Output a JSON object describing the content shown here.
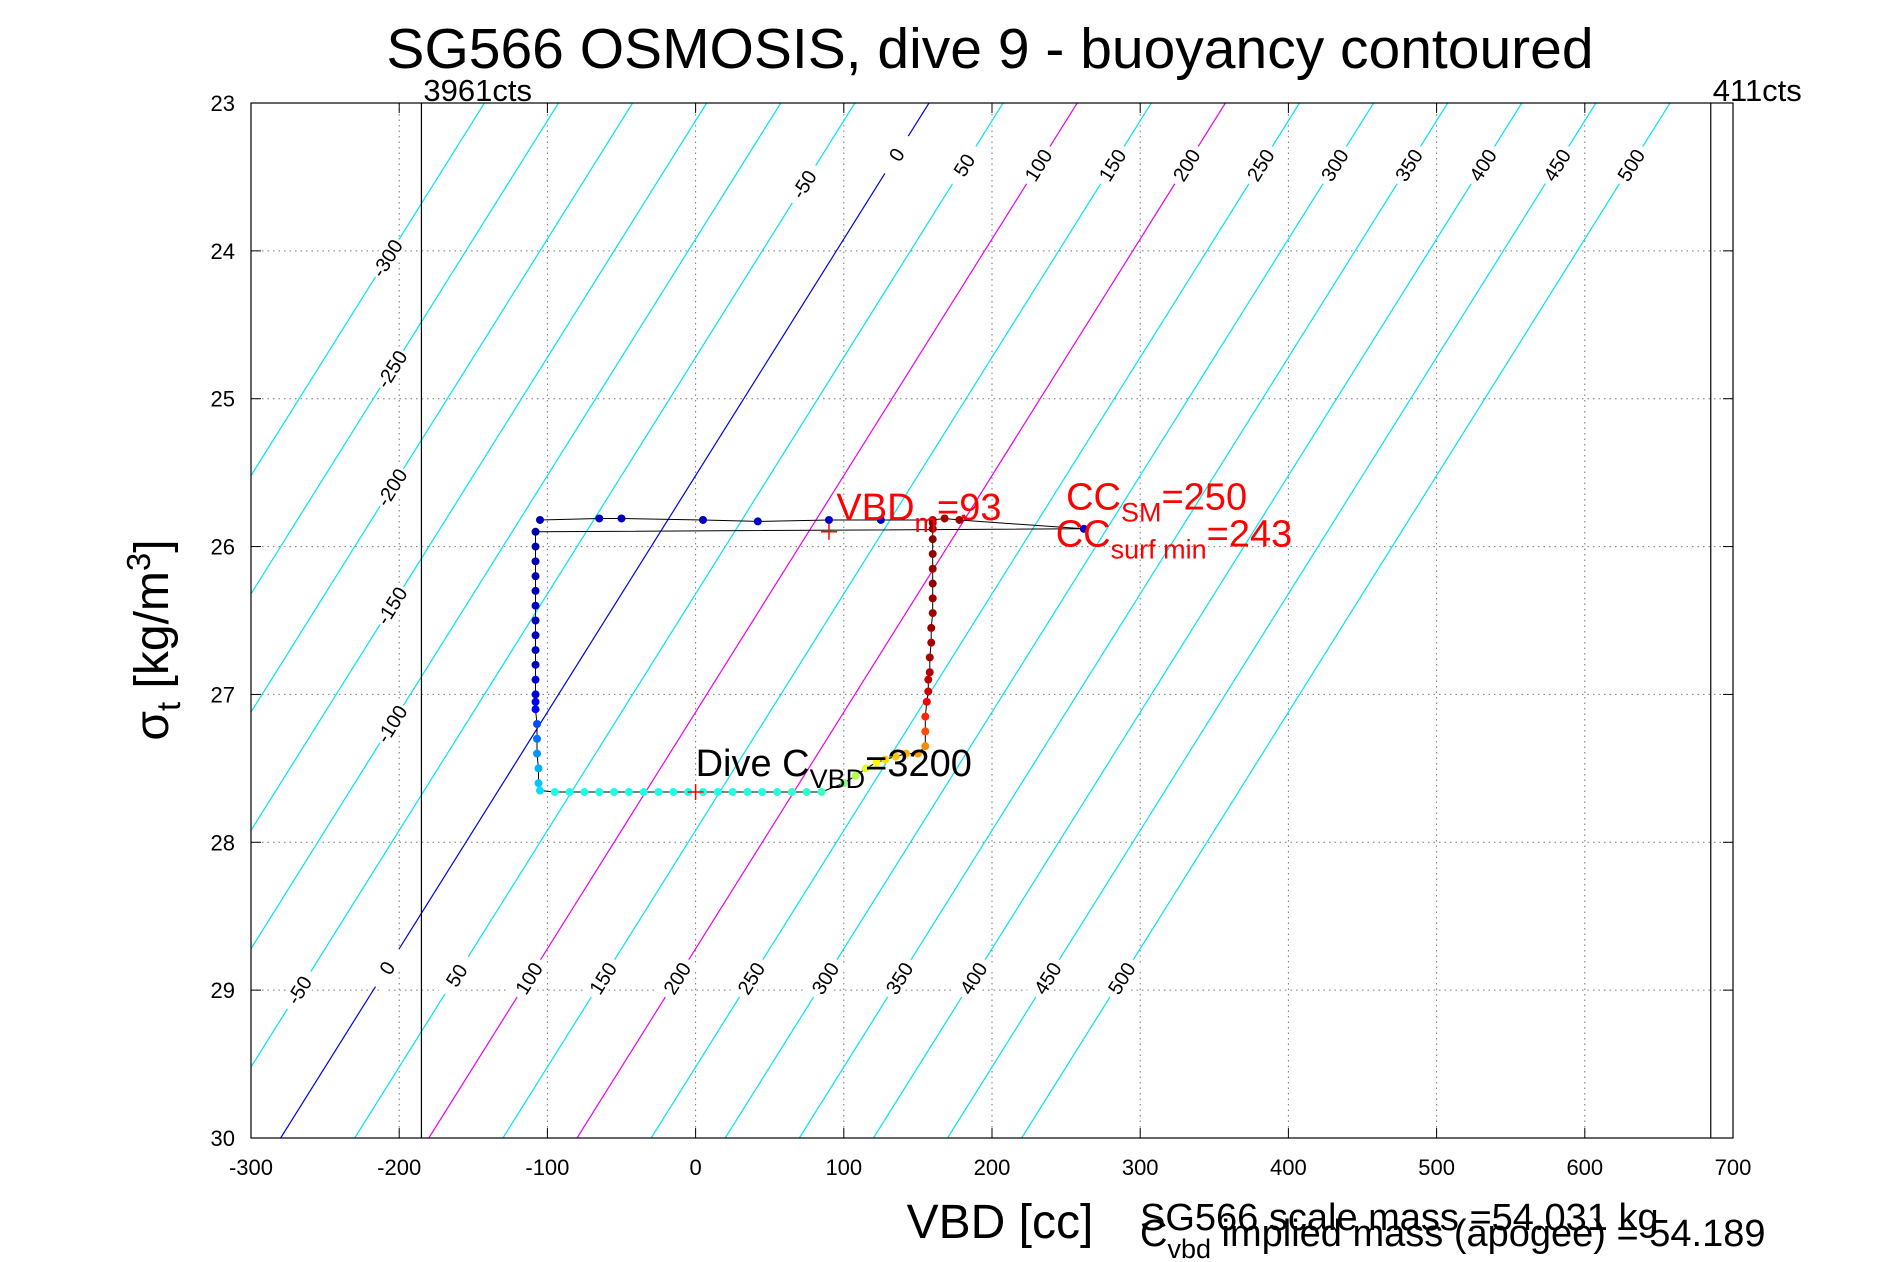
{
  "chart_data": {
    "type": "scatter",
    "title": "SG566 OSMOSIS, dive 9 - buoyancy contoured",
    "xlabel": "VBD [cc]",
    "ylabel_main": "σ",
    "ylabel_sub": "t",
    "ylabel_unit_a": " [kg/m",
    "ylabel_unit_sup": "3",
    "ylabel_unit_b": "]",
    "xlim": [
      -300,
      700
    ],
    "ylim": [
      23,
      30
    ],
    "y_reversed": true,
    "grid": true,
    "xticks": [
      -300,
      -200,
      -100,
      0,
      100,
      200,
      300,
      400,
      500,
      600,
      700
    ],
    "yticks": [
      23,
      24,
      25,
      26,
      27,
      28,
      29,
      30
    ],
    "vlines": [
      {
        "x": -185,
        "label": "3961cts"
      },
      {
        "x": 685,
        "label": "411cts"
      }
    ],
    "contours": {
      "levels": [
        -300,
        -250,
        -200,
        -150,
        -100,
        -50,
        0,
        50,
        100,
        150,
        200,
        250,
        300,
        350,
        400,
        450,
        500
      ],
      "line_x_at_sigma30": [
        -580,
        -530,
        -480,
        -430,
        -380,
        -330,
        -280,
        -230,
        -180,
        -130,
        -80,
        -30,
        20,
        70,
        120,
        170,
        220
      ],
      "slope_cc_per_sigma": 62.5,
      "colors": {
        "default": "#00e5ee",
        "zero": "#0000ee",
        "highlight": "#ee00ee"
      },
      "highlight_levels": [
        100,
        200
      ],
      "labels_top": [
        {
          "level": -300,
          "sigma": 24.05
        },
        {
          "level": -250,
          "sigma": 24.8
        },
        {
          "level": -200,
          "sigma": 25.6
        },
        {
          "level": -150,
          "sigma": 26.4
        },
        {
          "level": -100,
          "sigma": 27.2
        },
        {
          "level": -50,
          "sigma": 23.55
        },
        {
          "level": 0,
          "sigma": 23.35
        },
        {
          "level": 50,
          "sigma": 23.42
        },
        {
          "level": 100,
          "sigma": 23.42
        },
        {
          "level": 150,
          "sigma": 23.42
        },
        {
          "level": 200,
          "sigma": 23.42
        },
        {
          "level": 250,
          "sigma": 23.42
        },
        {
          "level": 300,
          "sigma": 23.42
        },
        {
          "level": 350,
          "sigma": 23.42
        },
        {
          "level": 400,
          "sigma": 23.42
        },
        {
          "level": 450,
          "sigma": 23.42
        },
        {
          "level": 500,
          "sigma": 23.42
        }
      ],
      "labels_bottom": [
        {
          "level": -50,
          "sigma": 29.0
        },
        {
          "level": 0,
          "sigma": 28.85
        },
        {
          "level": 50,
          "sigma": 28.9
        },
        {
          "level": 100,
          "sigma": 28.92
        },
        {
          "level": 150,
          "sigma": 28.92
        },
        {
          "level": 200,
          "sigma": 28.92
        },
        {
          "level": 250,
          "sigma": 28.92
        },
        {
          "level": 300,
          "sigma": 28.92
        },
        {
          "level": 350,
          "sigma": 28.92
        },
        {
          "level": 400,
          "sigma": 28.92
        },
        {
          "level": 450,
          "sigma": 28.92
        },
        {
          "level": 500,
          "sigma": 28.92
        }
      ]
    },
    "series": [
      {
        "points": [
          [
            -105,
            25.82
          ],
          [
            -65,
            25.81
          ],
          [
            -50,
            25.81
          ],
          [
            5,
            25.82
          ],
          [
            42,
            25.83
          ],
          [
            90,
            25.82
          ],
          [
            125,
            25.82
          ],
          [
            160,
            25.82
          ],
          [
            168,
            25.81
          ],
          [
            178,
            25.82
          ],
          [
            262,
            25.88
          ],
          [
            -108,
            25.9
          ],
          [
            -108,
            26.0
          ],
          [
            -108,
            26.1
          ],
          [
            -108,
            26.2
          ],
          [
            -108,
            26.3
          ],
          [
            -108,
            26.4
          ],
          [
            -108,
            26.5
          ],
          [
            -108,
            26.6
          ],
          [
            -108,
            26.7
          ],
          [
            -108,
            26.8
          ],
          [
            -108,
            26.9
          ],
          [
            -108,
            27.0
          ],
          [
            -108,
            27.05
          ],
          [
            -108,
            27.1
          ],
          [
            -107,
            27.2
          ],
          [
            -107,
            27.3
          ],
          [
            -107,
            27.4
          ],
          [
            -106,
            27.5
          ],
          [
            -106,
            27.6
          ],
          [
            -105,
            27.65
          ],
          [
            -95,
            27.66
          ],
          [
            -85,
            27.66
          ],
          [
            -75,
            27.66
          ],
          [
            -65,
            27.66
          ],
          [
            -55,
            27.66
          ],
          [
            -45,
            27.66
          ],
          [
            -35,
            27.66
          ],
          [
            -25,
            27.66
          ],
          [
            -15,
            27.66
          ],
          [
            -5,
            27.66
          ],
          [
            5,
            27.66
          ],
          [
            15,
            27.66
          ],
          [
            25,
            27.66
          ],
          [
            35,
            27.66
          ],
          [
            45,
            27.66
          ],
          [
            55,
            27.66
          ],
          [
            65,
            27.66
          ],
          [
            75,
            27.66
          ],
          [
            85,
            27.66
          ],
          [
            100,
            27.6
          ],
          [
            108,
            27.55
          ],
          [
            115,
            27.5
          ],
          [
            122,
            27.46
          ],
          [
            128,
            27.44
          ],
          [
            135,
            27.42
          ],
          [
            142,
            27.4
          ],
          [
            150,
            27.4
          ],
          [
            155,
            27.35
          ],
          [
            155,
            27.25
          ],
          [
            155,
            27.15
          ],
          [
            156,
            27.05
          ],
          [
            157,
            26.98
          ],
          [
            157,
            26.9
          ],
          [
            158,
            26.85
          ],
          [
            158,
            26.75
          ],
          [
            159,
            26.65
          ],
          [
            159,
            26.55
          ],
          [
            160,
            26.45
          ],
          [
            160,
            26.35
          ],
          [
            160,
            26.25
          ],
          [
            160,
            26.15
          ],
          [
            160,
            26.05
          ],
          [
            160,
            25.95
          ],
          [
            160,
            25.88
          ],
          [
            160,
            25.84
          ]
        ],
        "values": [
          0.05,
          0.06,
          0.06,
          0.06,
          0.07,
          0.07,
          0.08,
          0.95,
          0.96,
          0.97,
          0.08,
          0.04,
          0.04,
          0.05,
          0.05,
          0.05,
          0.06,
          0.06,
          0.06,
          0.07,
          0.07,
          0.08,
          0.09,
          0.1,
          0.12,
          0.2,
          0.24,
          0.27,
          0.3,
          0.32,
          0.34,
          0.4,
          0.4,
          0.4,
          0.4,
          0.4,
          0.4,
          0.4,
          0.4,
          0.4,
          0.4,
          0.4,
          0.4,
          0.41,
          0.41,
          0.41,
          0.41,
          0.42,
          0.42,
          0.43,
          0.5,
          0.55,
          0.6,
          0.63,
          0.66,
          0.68,
          0.7,
          0.72,
          0.74,
          0.8,
          0.84,
          0.88,
          0.92,
          0.94,
          0.95,
          0.96,
          0.96,
          0.97,
          0.97,
          0.97,
          0.98,
          0.98,
          0.98,
          0.99,
          0.99,
          0.99
        ],
        "colormap": "jet"
      }
    ],
    "markers": [
      {
        "x": 90,
        "y": 25.9,
        "color": "#ff0000"
      },
      {
        "x": 0,
        "y": 27.66,
        "color": "#ff0000"
      }
    ],
    "annotations": [
      {
        "id": "vbd-m",
        "x": 95,
        "y": 25.82,
        "color": "#ff0000",
        "main": "VBD",
        "sub": "m",
        "tail": "=93"
      },
      {
        "id": "cc-sm",
        "x": 250,
        "y": 25.75,
        "color": "#ff0000",
        "main": "CC",
        "sub": "SM",
        "tail": "=250"
      },
      {
        "id": "cc-surf",
        "x": 243,
        "y": 26.0,
        "color": "#ff0000",
        "main": "CC",
        "sub": "surf min",
        "tail": "=243"
      },
      {
        "id": "dive-c",
        "x": 0,
        "y": 27.55,
        "color": "#000000",
        "main": "Dive C",
        "sub": "VBD",
        "tail": "=3200"
      }
    ],
    "footer": {
      "mass_line_1": "SG566 scale mass =54.031 kg",
      "mass_line_2_main": "C",
      "mass_line_2_sub": "vbd",
      "mass_line_2_tail": " implied mass (apogee) = 54.189"
    }
  }
}
